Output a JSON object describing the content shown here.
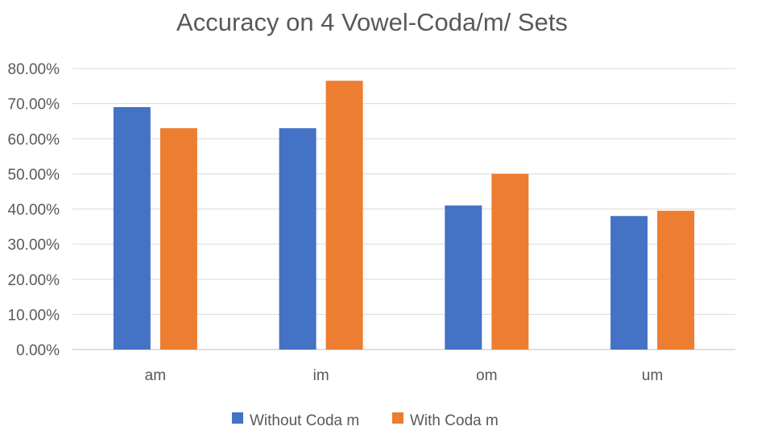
{
  "chart_data": {
    "type": "bar",
    "title": "Accuracy on 4 Vowel-Coda/m/ Sets",
    "categories": [
      "am",
      "im",
      "om",
      "um"
    ],
    "series": [
      {
        "name": "Without Coda m",
        "color": "#4472C4",
        "values": [
          69.0,
          63.0,
          41.0,
          38.0
        ]
      },
      {
        "name": "With Coda m",
        "color": "#ED7D31",
        "values": [
          63.0,
          76.5,
          50.0,
          39.5
        ]
      }
    ],
    "ylim": [
      0,
      80
    ],
    "yticks": [
      0,
      10,
      20,
      30,
      40,
      50,
      60,
      70,
      80
    ],
    "ytick_labels": [
      "0.00%",
      "10.00%",
      "20.00%",
      "30.00%",
      "40.00%",
      "50.00%",
      "60.00%",
      "70.00%",
      "80.00%"
    ],
    "grid": true,
    "legend_position": "bottom"
  }
}
